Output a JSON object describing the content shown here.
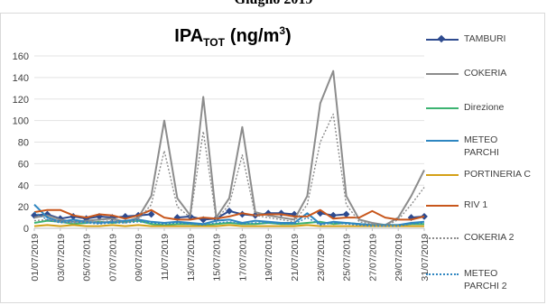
{
  "header_title": "Giugno 2019",
  "chart_data": {
    "type": "line",
    "title_main": "IPA",
    "title_sub": "TOT",
    "title_unit_prefix": "(ng/m",
    "title_unit_sup": "3",
    "title_unit_suffix": ")",
    "xlabel": "",
    "ylabel": "",
    "ylim": [
      0,
      160
    ],
    "yticks": [
      0,
      20,
      40,
      60,
      80,
      100,
      120,
      140,
      160
    ],
    "grid": true,
    "legend_position": "right",
    "x": [
      "01/07/2019",
      "02/07/2019",
      "03/07/2019",
      "04/07/2019",
      "05/07/2019",
      "06/07/2019",
      "07/07/2019",
      "08/07/2019",
      "09/07/2019",
      "10/07/2019",
      "11/07/2019",
      "12/07/2019",
      "13/07/2019",
      "14/07/2019",
      "15/07/2019",
      "16/07/2019",
      "17/07/2019",
      "18/07/2019",
      "19/07/2019",
      "20/07/2019",
      "21/07/2019",
      "22/07/2019",
      "23/07/2019",
      "24/07/2019",
      "25/07/2019",
      "26/07/2019",
      "27/07/2019",
      "28/07/2019",
      "29/07/2019",
      "30/07/2019",
      "31/07/2019"
    ],
    "xtick_labels": [
      "01/07/2019",
      "03/07/2019",
      "05/07/2019",
      "07/07/2019",
      "09/07/2019",
      "11/07/2019",
      "13/07/2019",
      "15/07/2019",
      "17/07/2019",
      "19/07/2019",
      "21/07/2019",
      "23/07/2019",
      "25/07/2019",
      "27/07/2019",
      "29/07/2019",
      "31/07/2019"
    ],
    "series": [
      {
        "name": "TAMBURI",
        "color": "#2e4b8f",
        "dash": "none",
        "marker": "diamond",
        "values": [
          12,
          13,
          9,
          11,
          9,
          11,
          10,
          11,
          12,
          13,
          null,
          10,
          11,
          8,
          9,
          16,
          13,
          12,
          14,
          14,
          13,
          null,
          14,
          12,
          13,
          null,
          null,
          null,
          null,
          10,
          11
        ]
      },
      {
        "name": "COKERIA",
        "color": "#8c8c8c",
        "dash": "none",
        "marker": "none",
        "values": [
          10,
          12,
          8,
          6,
          7,
          8,
          9,
          6,
          10,
          30,
          100,
          28,
          12,
          122,
          10,
          28,
          94,
          15,
          12,
          10,
          8,
          30,
          116,
          146,
          30,
          8,
          5,
          3,
          10,
          30,
          54
        ]
      },
      {
        "name": "Direzione",
        "color": "#3cb371",
        "dash": "none",
        "marker": "none",
        "values": [
          5,
          7,
          6,
          4,
          5,
          6,
          5,
          6,
          7,
          4,
          3,
          4,
          4,
          3,
          4,
          5,
          4,
          4,
          5,
          4,
          4,
          5,
          6,
          4,
          5,
          4,
          3,
          3,
          3,
          4,
          4
        ]
      },
      {
        "name": "METEO PARCHI",
        "color": "#2e86c1",
        "dash": "none",
        "marker": "none",
        "values": [
          22,
          10,
          6,
          8,
          6,
          5,
          6,
          7,
          8,
          6,
          5,
          6,
          5,
          4,
          7,
          8,
          5,
          7,
          6,
          5,
          5,
          14,
          4,
          6,
          5,
          4,
          3,
          3,
          3,
          5,
          6
        ]
      },
      {
        "name": "PORTINERIA C",
        "color": "#d4a017",
        "dash": "none",
        "marker": "none",
        "values": [
          2,
          3,
          2,
          3,
          2,
          2,
          3,
          2,
          3,
          2,
          2,
          2,
          2,
          2,
          2,
          3,
          2,
          2,
          2,
          2,
          2,
          3,
          2,
          2,
          2,
          2,
          2,
          2,
          2,
          2,
          2
        ]
      },
      {
        "name": "RIV 1",
        "color": "#c8571c",
        "dash": "none",
        "marker": "none",
        "values": [
          15,
          17,
          17,
          12,
          10,
          13,
          12,
          9,
          12,
          17,
          10,
          8,
          8,
          10,
          9,
          11,
          14,
          12,
          13,
          13,
          11,
          11,
          17,
          9,
          10,
          10,
          16,
          10,
          8,
          8,
          11
        ]
      },
      {
        "name": "COKERIA 2",
        "color": "#8c8c8c",
        "dash": "dot",
        "marker": "none",
        "values": [
          7,
          8,
          6,
          5,
          6,
          6,
          7,
          5,
          8,
          22,
          72,
          20,
          10,
          90,
          8,
          22,
          68,
          12,
          10,
          8,
          6,
          22,
          80,
          106,
          22,
          6,
          4,
          2,
          8,
          22,
          38
        ]
      },
      {
        "name": "METEO PARCHI 2",
        "color": "#2e86c1",
        "dash": "dot",
        "marker": "none",
        "values": [
          15,
          8,
          5,
          6,
          5,
          4,
          5,
          5,
          6,
          5,
          4,
          5,
          4,
          3,
          5,
          6,
          4,
          5,
          5,
          4,
          4,
          10,
          3,
          5,
          4,
          3,
          2,
          2,
          2,
          4,
          5
        ]
      }
    ]
  }
}
